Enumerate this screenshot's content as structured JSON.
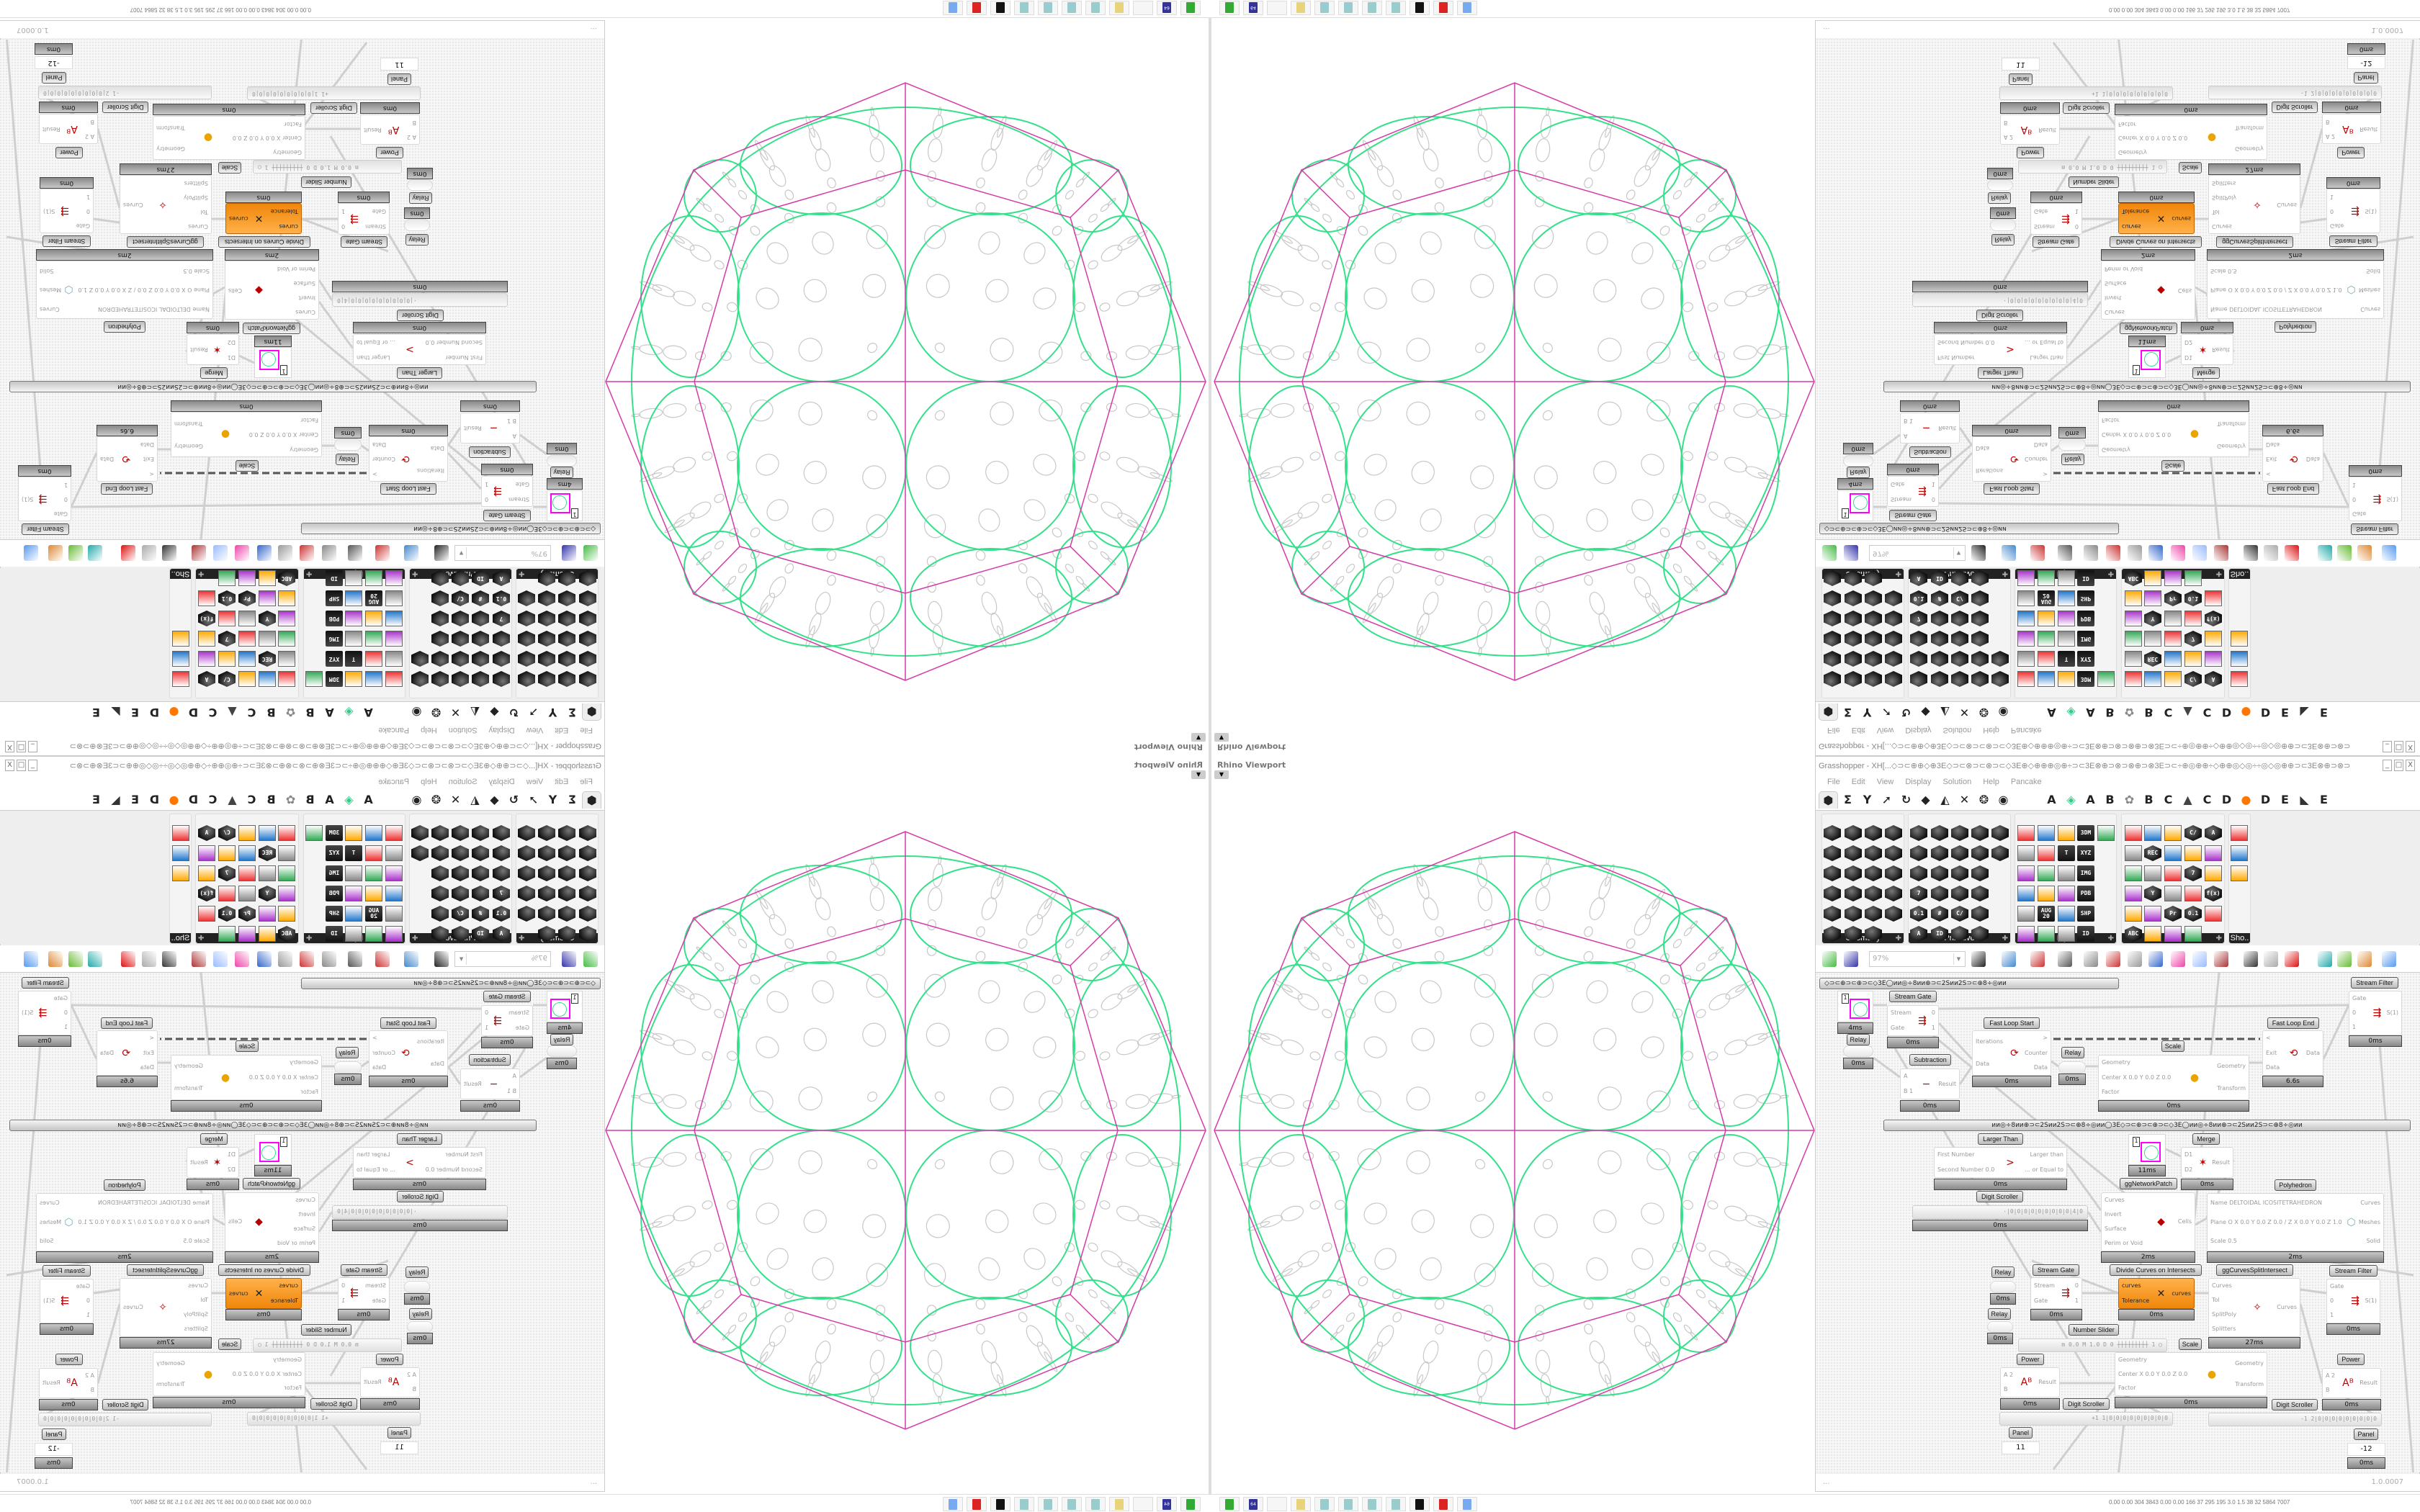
{
  "viewport": {
    "label": "Rhino Viewport",
    "dropdown_icon": "caret-down-icon",
    "colors": {
      "polyhedron_edges": "#d63aa8",
      "cell_boundaries": "#35e08a",
      "pattern": "#c8c8c8"
    }
  },
  "grasshopper": {
    "title": "Grasshopper - XH[...◇⊃⊂⊕⊕◇⊕3E◇⊃⊂⊗⊃⊂⊗⊃⊂◇3E⊕◇⊕⊕⊕◎⊕÷⊃⊂3E⊗⊕⊃⊗⊃⊗⊕⊃⊗3E⊃⊂÷⊕◎⊕⊕÷◇⊕⊕◎◇◎÷÷◎◇◎⊕⊕⊃⊂3E⊗⊕⊃⊗⊃",
    "window_buttons": [
      "_",
      "□",
      "X"
    ],
    "menu": [
      "File",
      "Edit",
      "View",
      "Display",
      "Solution",
      "Help",
      "Pancake"
    ],
    "tabs_icons": [
      "params",
      "maths",
      "sets",
      "vector",
      "curve",
      "surface",
      "mesh",
      "intersect",
      "transform",
      "display"
    ],
    "tabs_letters": [
      "A",
      "A",
      "B",
      "B",
      "C",
      "C",
      "D",
      "D",
      "E",
      "E"
    ],
    "panel_groups": [
      {
        "label": "Geometry",
        "icons": [
          "vector",
          "line",
          "point",
          "spiral",
          "x",
          "plane",
          "box",
          "field",
          "arrow",
          "diamond",
          "text-tag",
          "wave",
          "circle",
          "cube",
          "torus",
          "atom",
          "arc",
          "mesh",
          "crop",
          "swirl",
          "loop",
          "sphere-mesh",
          "magnet"
        ]
      },
      {
        "label": "Primitive",
        "icons": [
          "leaf",
          "star",
          "matrix",
          "shell",
          "domain",
          "shape",
          "stripes",
          "clock",
          "image",
          "globe",
          "pin",
          "ÜÇ",
          "hex",
          "mouse",
          "7",
          "+",
          "tree",
          "drop",
          "0.1",
          "#",
          "C/",
          "file",
          "A",
          "ID",
          "ball",
          "curve"
        ]
      },
      {
        "label": "Input",
        "icons": [
          "import",
          "button",
          "crystal",
          "3DM",
          "link",
          "graph",
          "gumball",
          "T",
          "XYZ",
          "toggle",
          "gradient",
          "colorwheel",
          "IMG",
          "knob",
          "checker",
          "curve-graph",
          "PDB",
          "slider",
          "AUG 20",
          "dial",
          "SHP",
          "list",
          "clock",
          "swatch",
          "ID"
        ]
      },
      {
        "label": "Util",
        "icons": [
          "cherry",
          "magnet",
          "arrow-right",
          "C/",
          "A",
          "triangle",
          "REC",
          "clock-search",
          "spiral",
          "pie",
          "axes",
          "pencil",
          "stopwatch",
          "7",
          "flask",
          "tree",
          "Y",
          "egg",
          "brush",
          "f(x)",
          "circle",
          "timer",
          "Pr",
          "0.1",
          "palette",
          "ABC",
          "arrow",
          "dial",
          "x"
        ]
      },
      {
        "label": "Sho..",
        "icons": [
          "goggles",
          "goggles-alt",
          "presentation"
        ]
      }
    ],
    "toolbar": {
      "zoom": "97%",
      "icons": [
        "new-file",
        "save",
        "zoom-extents",
        "eye",
        "paintbrush",
        "trim",
        "at",
        "gha",
        "sketch",
        "search",
        "package",
        "bulb",
        "wires",
        "drop",
        "pill",
        "gem",
        "pipe",
        "leaf",
        "sphere-half",
        "sphere"
      ]
    },
    "group_bar_1": "◇⊃⊂⊕⊃⊂⊕⊃⊂◇3E◯ᴎᴎ◎÷8ᴎᴎ⊕⊃⊂2Sᴎᴎ2S⊃⊂⊕8÷◎ᴎᴎ",
    "group_bar_2": "ᴎᴎ◎÷8ᴎᴎ⊕⊃⊂2Sᴎᴎ2S⊃⊂⊕8÷◎ᴎᴎ◯3E◇⊃⊂⊕⊃⊂⊕⊃⊂◇3E◯ᴎᴎ◎÷8ᴎᴎ⊕⊃⊂2Sᴎᴎ2S⊃⊂⊕8÷◎ᴎᴎ",
    "components": [
      {
        "kind": "swatch",
        "value": "1",
        "time": "4ms"
      },
      {
        "label": "Stream Gate",
        "ins": [
          "Stream",
          "Gate"
        ],
        "outs": [
          "0",
          "1"
        ],
        "time": "0ms",
        "icon": "⇶"
      },
      {
        "label": "Relay",
        "time": "0ms",
        "kind": "relay"
      },
      {
        "label": "Fast Loop Start",
        "ins": [
          "Iterations",
          "Data"
        ],
        "outs": [
          ">",
          "Counter",
          "Data"
        ],
        "time": "0ms",
        "icon": "⟳"
      },
      {
        "label": "Relay",
        "time": "0ms",
        "kind": "relay"
      },
      {
        "label": "Scale",
        "ins": [
          "Geometry",
          "Center X 0.0 Y 0.0 Z 0.0",
          "Factor"
        ],
        "outs": [
          "Geometry",
          "Transform"
        ],
        "time": "0ms",
        "icon": "●"
      },
      {
        "label": "Fast Loop End",
        "ins": [
          "<",
          "Exit",
          "Data"
        ],
        "outs": [
          "Data"
        ],
        "time": "6.6s",
        "icon": "⟲"
      },
      {
        "label": "Stream Filter",
        "ins": [
          "Gate",
          "0",
          "1"
        ],
        "outs": [
          "S(1)"
        ],
        "time": "0ms",
        "icon": "⇶"
      },
      {
        "label": "Subtraction",
        "ins": [
          "A",
          "B 1"
        ],
        "outs": [
          "Result"
        ],
        "time": "0ms",
        "icon": "−"
      },
      {
        "label": "Larger Than",
        "ins": [
          "First Number",
          "Second Number 0.0"
        ],
        "outs": [
          "Larger than",
          "... or Equal to"
        ],
        "time": "0ms",
        "icon": ">"
      },
      {
        "kind": "swatch",
        "value": "1",
        "time": "11ms"
      },
      {
        "label": "Merge",
        "ins": [
          "D1",
          "D2"
        ],
        "outs": [
          "Result"
        ],
        "time": "0ms",
        "icon": "✶"
      },
      {
        "label": "ggNetworkPatch",
        "ins": [
          "Curves",
          "Invert",
          "Surface",
          "Perim or Void"
        ],
        "outs": [
          "Cells"
        ],
        "time": "2ms",
        "icon": "◆"
      },
      {
        "label": "Digit Scroller",
        "kind": "slider",
        "value": "·|0|0|0|0|0|0|0|0|0|4|0",
        "time": "0ms"
      },
      {
        "label": "Polyhedron",
        "ins": [
          "Name DELTOIDAL ICOSITETRAHEDRON",
          "Plane  O X 0.0 Y 0.0 Z 0.0 / Z X 0.0 Y 0.0 Z 1.0",
          "Scale 0.5"
        ],
        "outs": [
          "Curves",
          "Meshes",
          "Solid"
        ],
        "time": "2ms",
        "icon": "⬡"
      },
      {
        "label": "Relay",
        "time": "0ms",
        "kind": "relay"
      },
      {
        "label": "Stream Gate",
        "ins": [
          "Stream",
          "Gate"
        ],
        "outs": [
          "0",
          "1"
        ],
        "time": "0ms",
        "icon": "⇶"
      },
      {
        "label": "Divide Curves on Intersects",
        "ins": [
          "curves",
          "Tolerance"
        ],
        "outs": [
          "curves"
        ],
        "time": "0ms",
        "icon": "✕",
        "orange": true
      },
      {
        "label": "ggCurvesSplitIntersect",
        "ins": [
          "Curves",
          "Tol",
          "SplitPoly",
          "Splitters"
        ],
        "outs": [
          "Curves"
        ],
        "time": "27ms",
        "icon": "✧"
      },
      {
        "label": "Stream Filter",
        "ins": [
          "Gate",
          "0",
          "1"
        ],
        "outs": [
          "S(1)"
        ],
        "time": "0ms",
        "icon": "⇶"
      },
      {
        "label": "Relay",
        "time": "0ms",
        "kind": "relay"
      },
      {
        "label": "Number Slider",
        "kind": "slider",
        "value": "m 0.0 M 1.0 D 0  ┼┼┼┼┼┼┼┼┼ 1 ◯"
      },
      {
        "label": "Scale",
        "ins": [
          "Geometry",
          "Center X 0.0 Y 0.0 Z 0.0",
          "Factor"
        ],
        "outs": [
          "Geometry",
          "Transform"
        ],
        "time": "0ms",
        "icon": "●"
      },
      {
        "label": "Power",
        "ins": [
          "A 2",
          "B"
        ],
        "outs": [
          "Result"
        ],
        "time": "0ms",
        "icon": "Aᴮ"
      },
      {
        "label": "Digit Scroller",
        "kind": "slider",
        "value": "+1 1|0|0|0|0|0|0|0|0|0"
      },
      {
        "label": "Digit Scroller",
        "kind": "slider",
        "value": "-1 2|0|0|0|0|0|0|0|0|0"
      },
      {
        "label": "Power",
        "ins": [
          "A 2",
          "B"
        ],
        "outs": [
          "Result"
        ],
        "time": "0ms",
        "icon": "Aᴮ"
      },
      {
        "label": "Panel",
        "kind": "panel",
        "value": "11"
      },
      {
        "label": "Panel",
        "kind": "panel",
        "value": "-12",
        "time": "0ms"
      }
    ],
    "status": {
      "left": "...",
      "version": "1.0.0007"
    }
  },
  "taskbar": {
    "icons": [
      "monitor",
      "floppy-64",
      "blank",
      "folder",
      "notepad",
      "notepad",
      "notepad",
      "notepad",
      "cat-logo",
      "red-app",
      "calculator"
    ],
    "floppy_text": "64",
    "tray": "0.00 0.00 304 3843 0.00 0.00 166 37 295 195 3.0 1.5 38 32 5864 7007"
  }
}
